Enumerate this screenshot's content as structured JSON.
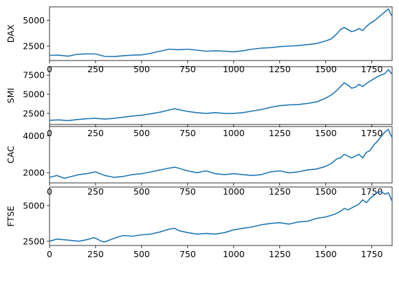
{
  "chart_data": [
    {
      "type": "line",
      "ylabel": "DAX",
      "xlim": [
        0,
        1860
      ],
      "ylim": [
        1100,
        6300
      ],
      "xticks": [
        0,
        250,
        500,
        750,
        1000,
        1250,
        1500,
        1750
      ],
      "yticks": [
        2500,
        5000
      ],
      "color": "#1f77b4",
      "series": [
        {
          "x": [
            0,
            50,
            100,
            150,
            200,
            250,
            300,
            350,
            400,
            450,
            500,
            550,
            600,
            650,
            700,
            750,
            800,
            850,
            900,
            950,
            1000,
            1050,
            1100,
            1150,
            1200,
            1250,
            1300,
            1350,
            1400,
            1450,
            1500,
            1530,
            1560,
            1580,
            1600,
            1620,
            1640,
            1660,
            1680,
            1700,
            1720,
            1740,
            1760,
            1780,
            1800,
            1820,
            1840,
            1850,
            1860
          ],
          "y": [
            1600,
            1620,
            1520,
            1700,
            1750,
            1730,
            1500,
            1480,
            1560,
            1620,
            1650,
            1800,
            2000,
            2200,
            2150,
            2200,
            2100,
            2000,
            2050,
            2000,
            1950,
            2050,
            2200,
            2300,
            2350,
            2450,
            2500,
            2550,
            2650,
            2750,
            3000,
            3200,
            3700,
            4100,
            4300,
            4100,
            3900,
            4000,
            4200,
            4000,
            4400,
            4700,
            4900,
            5200,
            5500,
            5800,
            6100,
            5700,
            5400
          ]
        }
      ]
    },
    {
      "type": "line",
      "ylabel": "SMI",
      "xlim": [
        0,
        1860
      ],
      "ylim": [
        1050,
        8600
      ],
      "xticks": [
        0,
        250,
        500,
        750,
        1000,
        1250,
        1500,
        1750
      ],
      "yticks": [
        2500,
        5000,
        7500
      ],
      "color": "#1f77b4",
      "series": [
        {
          "x": [
            0,
            50,
            100,
            150,
            200,
            250,
            300,
            350,
            400,
            450,
            500,
            550,
            600,
            650,
            680,
            700,
            750,
            800,
            850,
            900,
            950,
            1000,
            1050,
            1100,
            1150,
            1200,
            1250,
            1300,
            1350,
            1400,
            1450,
            1500,
            1530,
            1560,
            1580,
            1600,
            1620,
            1640,
            1660,
            1680,
            1700,
            1720,
            1740,
            1760,
            1780,
            1800,
            1820,
            1840,
            1850,
            1860
          ],
          "y": [
            1600,
            1650,
            1550,
            1700,
            1800,
            1850,
            1750,
            1850,
            2000,
            2150,
            2250,
            2450,
            2650,
            2950,
            3100,
            3000,
            2750,
            2600,
            2500,
            2600,
            2500,
            2500,
            2600,
            2800,
            3000,
            3300,
            3500,
            3600,
            3650,
            3800,
            4000,
            4500,
            4900,
            5500,
            6000,
            6500,
            6200,
            5800,
            5900,
            6300,
            6000,
            6400,
            6700,
            7000,
            7300,
            7500,
            7700,
            8200,
            7900,
            7600
          ]
        }
      ]
    },
    {
      "type": "line",
      "ylabel": "CAC",
      "xlim": [
        0,
        1860
      ],
      "ylim": [
        1450,
        4500
      ],
      "xticks": [
        0,
        250,
        500,
        750,
        1000,
        1250,
        1500,
        1750
      ],
      "yticks": [
        2000,
        4000
      ],
      "color": "#1f77b4",
      "series": [
        {
          "x": [
            0,
            40,
            80,
            120,
            160,
            200,
            250,
            300,
            350,
            400,
            450,
            500,
            550,
            600,
            650,
            680,
            700,
            750,
            800,
            850,
            900,
            950,
            1000,
            1050,
            1100,
            1150,
            1200,
            1250,
            1300,
            1350,
            1400,
            1450,
            1500,
            1530,
            1560,
            1580,
            1600,
            1620,
            1640,
            1660,
            1680,
            1700,
            1720,
            1740,
            1760,
            1780,
            1800,
            1820,
            1840,
            1850,
            1860
          ],
          "y": [
            1750,
            1850,
            1700,
            1800,
            1900,
            1950,
            2050,
            1850,
            1750,
            1800,
            1900,
            1950,
            2050,
            2150,
            2250,
            2300,
            2250,
            2100,
            2000,
            2100,
            1950,
            1900,
            1950,
            1900,
            1850,
            1900,
            2050,
            2100,
            2000,
            2050,
            2150,
            2200,
            2350,
            2500,
            2750,
            2800,
            3000,
            2900,
            2800,
            2900,
            3000,
            2800,
            3100,
            3200,
            3500,
            3700,
            3950,
            4200,
            4350,
            4100,
            3900
          ]
        }
      ]
    },
    {
      "type": "line",
      "ylabel": "FTSE",
      "xlim": [
        0,
        1860
      ],
      "ylim": [
        2200,
        6300
      ],
      "xticks": [
        0,
        250,
        500,
        750,
        1000,
        1250,
        1500,
        1750
      ],
      "yticks": [
        2500,
        5000
      ],
      "color": "#1f77b4",
      "series": [
        {
          "x": [
            0,
            40,
            80,
            120,
            160,
            200,
            240,
            260,
            280,
            300,
            330,
            360,
            400,
            450,
            500,
            550,
            600,
            650,
            680,
            700,
            750,
            800,
            850,
            900,
            950,
            1000,
            1050,
            1100,
            1150,
            1200,
            1250,
            1300,
            1350,
            1400,
            1450,
            1500,
            1550,
            1580,
            1600,
            1620,
            1650,
            1680,
            1700,
            1720,
            1740,
            1760,
            1780,
            1800,
            1820,
            1840,
            1850,
            1860
          ],
          "y": [
            2500,
            2650,
            2600,
            2550,
            2500,
            2600,
            2750,
            2650,
            2500,
            2450,
            2600,
            2750,
            2900,
            2850,
            2950,
            3000,
            3150,
            3350,
            3400,
            3250,
            3100,
            3000,
            3050,
            3000,
            3100,
            3300,
            3400,
            3500,
            3650,
            3750,
            3800,
            3700,
            3850,
            3900,
            4100,
            4200,
            4400,
            4600,
            4800,
            4700,
            4900,
            5100,
            5400,
            5200,
            5500,
            5700,
            5900,
            6000,
            5800,
            5900,
            5600,
            5300
          ]
        }
      ]
    }
  ]
}
